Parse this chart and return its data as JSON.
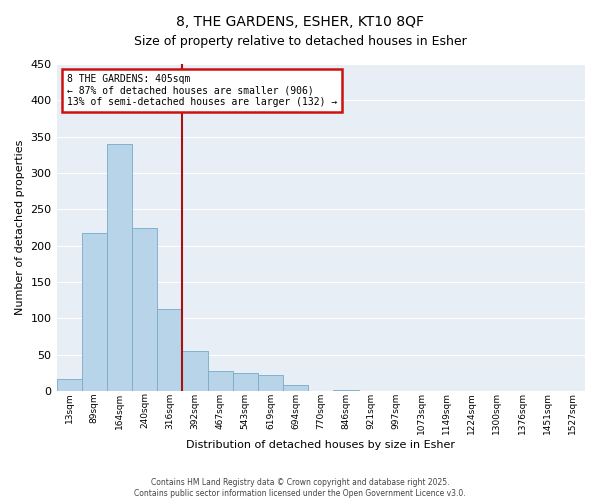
{
  "title": "8, THE GARDENS, ESHER, KT10 8QF",
  "subtitle": "Size of property relative to detached houses in Esher",
  "xlabel": "Distribution of detached houses by size in Esher",
  "ylabel": "Number of detached properties",
  "bin_labels": [
    "13sqm",
    "89sqm",
    "164sqm",
    "240sqm",
    "316sqm",
    "392sqm",
    "467sqm",
    "543sqm",
    "619sqm",
    "694sqm",
    "770sqm",
    "846sqm",
    "921sqm",
    "997sqm",
    "1073sqm",
    "1149sqm",
    "1224sqm",
    "1300sqm",
    "1376sqm",
    "1451sqm",
    "1527sqm"
  ],
  "bar_values": [
    17,
    218,
    340,
    224,
    113,
    55,
    27,
    25,
    22,
    8,
    0,
    1,
    0,
    0,
    0,
    0,
    0,
    0,
    0,
    0,
    0
  ],
  "bar_color": "#b8d4e8",
  "bar_edge_color": "#7aaac8",
  "vline_x_index": 5,
  "vline_color": "#aa1111",
  "ylim": [
    0,
    450
  ],
  "yticks": [
    0,
    50,
    100,
    150,
    200,
    250,
    300,
    350,
    400,
    450
  ],
  "annotation_text": "8 THE GARDENS: 405sqm\n← 87% of detached houses are smaller (906)\n13% of semi-detached houses are larger (132) →",
  "annotation_box_color": "#ffffff",
  "annotation_border_color": "#cc1111",
  "footer_line1": "Contains HM Land Registry data © Crown copyright and database right 2025.",
  "footer_line2": "Contains public sector information licensed under the Open Government Licence v3.0.",
  "bg_color": "#ffffff",
  "plot_bg_color": "#e8eef5",
  "grid_color": "#ffffff",
  "title_fontsize": 10,
  "subtitle_fontsize": 9
}
